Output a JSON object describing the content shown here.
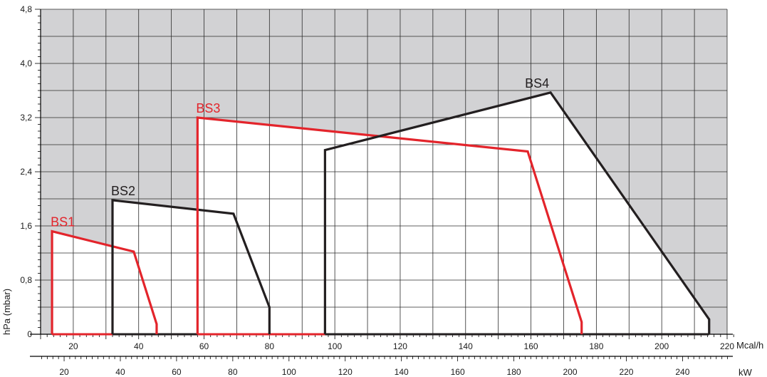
{
  "chart_data": {
    "type": "line",
    "title": "",
    "ylabel": "hPa (mbar)",
    "xlabel": "Mcal/h",
    "x2label": "kW",
    "xlim": [
      10,
      220
    ],
    "ylim": [
      0,
      4.8
    ],
    "x_ticks": [
      20,
      40,
      60,
      80,
      100,
      120,
      140,
      160,
      180,
      200,
      220
    ],
    "x_tick_labels": [
      "20",
      "40",
      "60",
      "80",
      "100",
      "120",
      "140",
      "160",
      "180",
      "200",
      "220"
    ],
    "x2_ticks": [
      20,
      40,
      60,
      80,
      100,
      120,
      140,
      160,
      180,
      200,
      220,
      240
    ],
    "x2_tick_labels": [
      "20",
      "40",
      "60",
      "80",
      "100",
      "120",
      "140",
      "160",
      "180",
      "200",
      "220",
      "240"
    ],
    "y_ticks": [
      0,
      0.8,
      1.6,
      2.4,
      3.2,
      4.0,
      4.8
    ],
    "y_tick_labels": [
      "0",
      "0,8",
      "1,6",
      "2,4",
      "3,2",
      "4,0",
      "4,8"
    ],
    "grid": true,
    "outside_envelope_shading": "#d2d2d4",
    "series": [
      {
        "name": "BS1",
        "color": "#e3242b",
        "x": [
          13.5,
          13.5,
          38.5,
          45.5,
          45.5
        ],
        "y": [
          0,
          1.52,
          1.22,
          0.15,
          0
        ]
      },
      {
        "name": "BS2",
        "color": "#231f20",
        "x": [
          32,
          32,
          69,
          80,
          80
        ],
        "y": [
          0,
          1.98,
          1.78,
          0.4,
          0
        ]
      },
      {
        "name": "BS3",
        "color": "#e3242b",
        "x": [
          58,
          58,
          159,
          175.5,
          175.5
        ],
        "y": [
          0,
          3.2,
          2.7,
          0.18,
          0
        ]
      },
      {
        "name": "BS4",
        "color": "#231f20",
        "x": [
          97,
          97,
          166,
          214.5,
          214.5
        ],
        "y": [
          0,
          2.72,
          3.57,
          0.22,
          0
        ]
      }
    ],
    "baseline_segments": [
      {
        "color": "#e3242b",
        "x": [
          13.5,
          32
        ]
      },
      {
        "color": "#231f20",
        "x": [
          32,
          45.5
        ]
      },
      {
        "color": "#231f20",
        "x": [
          45.5,
          80
        ]
      },
      {
        "color": "#e3242b",
        "x": [
          58,
          97
        ]
      },
      {
        "color": "#231f20",
        "x": [
          97,
          214.5
        ]
      }
    ]
  }
}
